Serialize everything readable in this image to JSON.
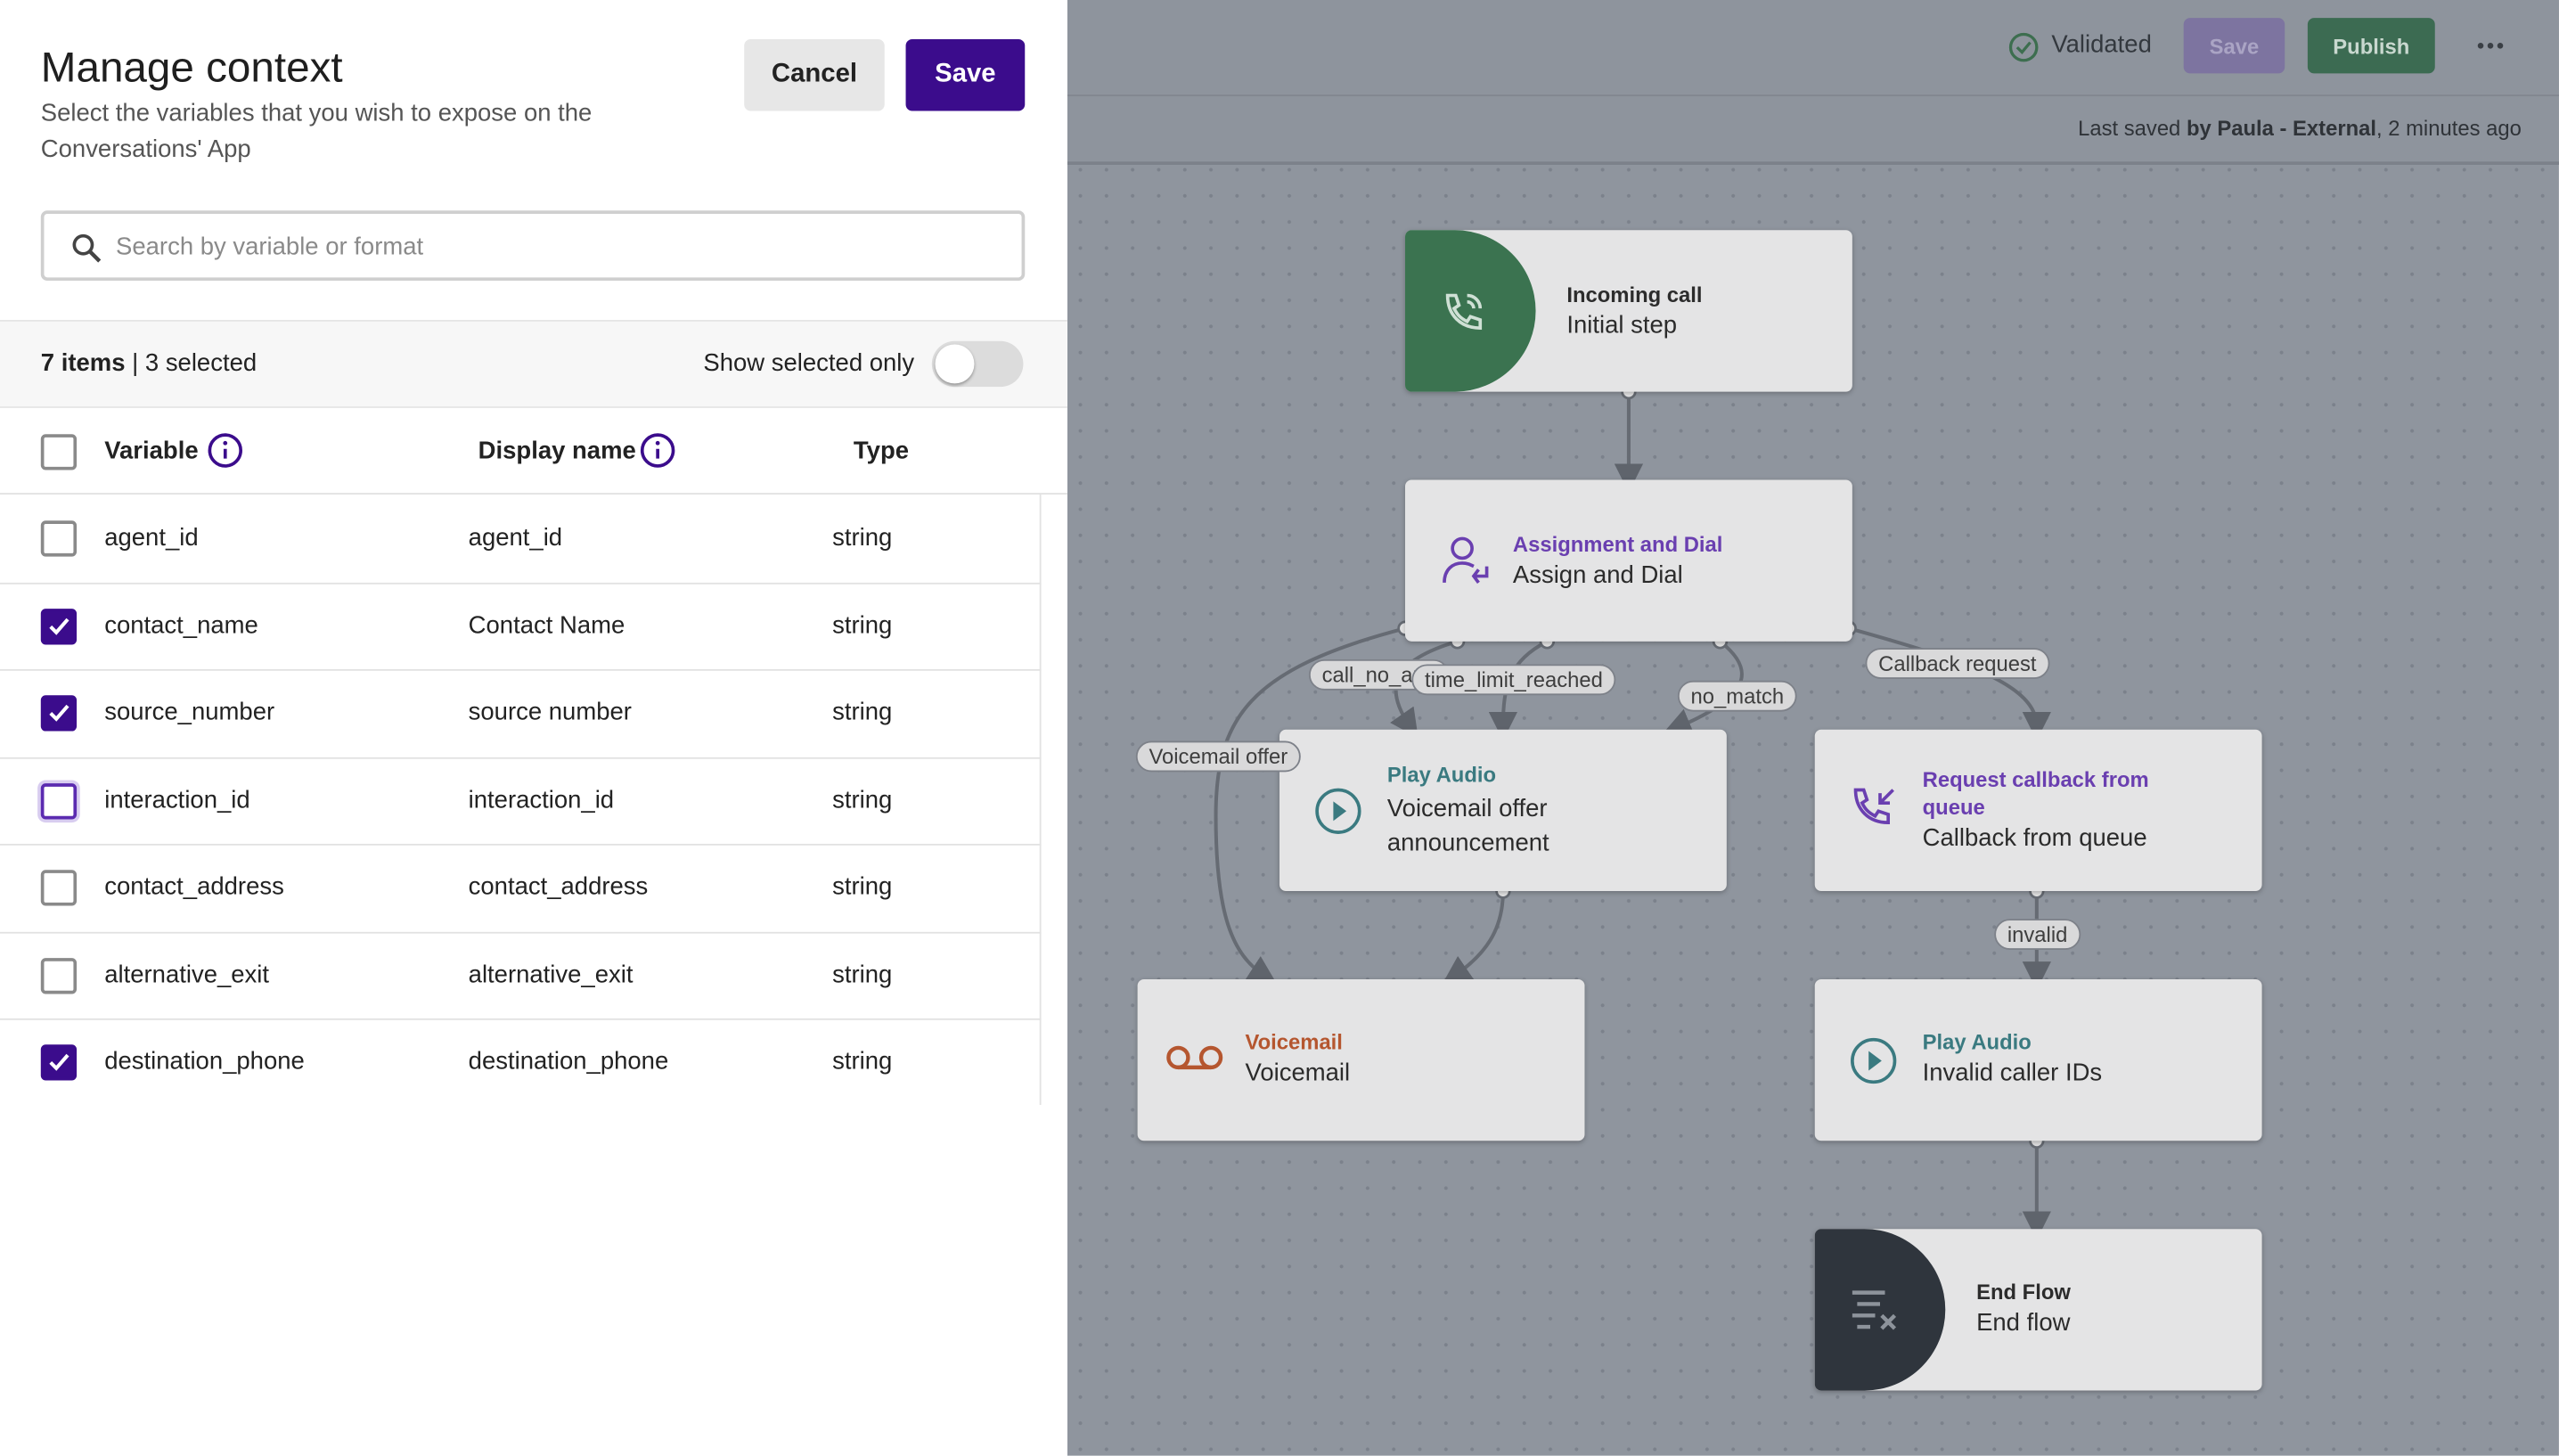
{
  "panel": {
    "title": "Manage context",
    "subtitle": "Select the variables that you wish to expose on the Conversations' App",
    "cancel": "Cancel",
    "save": "Save",
    "search_placeholder": "Search by variable or format",
    "count": "7 items",
    "selected_count": "| 3 selected",
    "toggle_label": "Show selected only",
    "show_selected_only": false,
    "columns": [
      "Variable",
      "Display name",
      "Type"
    ],
    "rows": [
      {
        "variable": "agent_id",
        "display_name": "agent_id",
        "type": "string",
        "selected": false
      },
      {
        "variable": "contact_name",
        "display_name": "Contact Name",
        "type": "string",
        "selected": true
      },
      {
        "variable": "source_number",
        "display_name": "source number",
        "type": "string",
        "selected": true
      },
      {
        "variable": "interaction_id",
        "display_name": "interaction_id",
        "type": "string",
        "selected": false,
        "focused": true
      },
      {
        "variable": "contact_address",
        "display_name": "contact_address",
        "type": "string",
        "selected": false
      },
      {
        "variable": "alternative_exit",
        "display_name": "alternative_exit",
        "type": "string",
        "selected": false
      },
      {
        "variable": "destination_phone",
        "display_name": "destination_phone",
        "type": "string",
        "selected": true
      }
    ]
  },
  "topbar": {
    "status": "Validated",
    "save": "Save",
    "publish": "Publish",
    "last_saved": [
      "Last saved",
      "by Paula - External",
      ", 2 minutes ago"
    ]
  },
  "flow": {
    "nodes": [
      {
        "category": "Incoming call",
        "title": "Initial step"
      },
      {
        "category": "Assignment and Dial",
        "title": "Assign and Dial"
      },
      {
        "category": "Play Audio",
        "title": "Voicemail offer announcement"
      },
      {
        "category": "Request callback from queue",
        "title": "Callback from queue"
      },
      {
        "category": "Voicemail",
        "title": "Voicemail"
      },
      {
        "category": "Play Audio",
        "title": "Invalid caller IDs"
      },
      {
        "category": "End Flow",
        "title": "End flow"
      }
    ],
    "edge_labels": [
      "call_no_answer",
      "time_limit_reached",
      "no_match",
      "Callback request",
      "Voicemail offer",
      "invalid"
    ]
  }
}
